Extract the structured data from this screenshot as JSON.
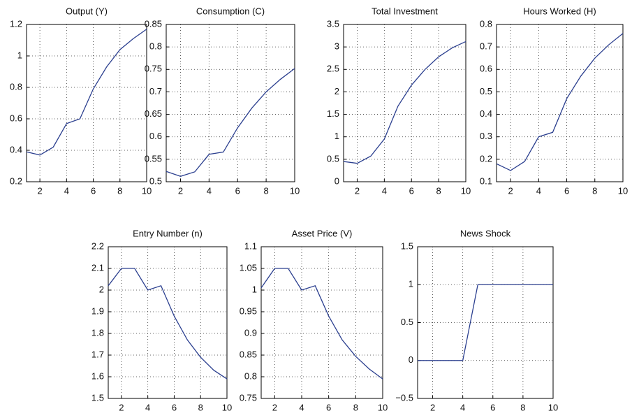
{
  "chart_data": [
    {
      "type": "line",
      "title": "Output (Y)",
      "x": [
        1,
        2,
        3,
        4,
        5,
        6,
        7,
        8,
        9,
        10
      ],
      "values": [
        0.39,
        0.37,
        0.42,
        0.57,
        0.6,
        0.79,
        0.93,
        1.04,
        1.11,
        1.17
      ],
      "color": "#2b3f8f",
      "xlim": [
        1,
        10
      ],
      "xticks": [
        2,
        4,
        6,
        8,
        10
      ],
      "ylim": [
        0.2,
        1.2
      ],
      "yticks": [
        0.2,
        0.4,
        0.6,
        0.8,
        1,
        1.2
      ],
      "grid": true
    },
    {
      "type": "line",
      "title": "Consumption (C)",
      "x": [
        1,
        2,
        3,
        4,
        5,
        6,
        7,
        8,
        9,
        10
      ],
      "values": [
        0.523,
        0.512,
        0.522,
        0.561,
        0.566,
        0.62,
        0.664,
        0.7,
        0.728,
        0.752
      ],
      "color": "#2b3f8f",
      "xlim": [
        1,
        10
      ],
      "xticks": [
        2,
        4,
        6,
        8,
        10
      ],
      "ylim": [
        0.5,
        0.85
      ],
      "yticks": [
        0.5,
        0.55,
        0.6,
        0.65,
        0.7,
        0.75,
        0.8,
        0.85
      ],
      "grid": true
    },
    {
      "type": "line",
      "title": "Total Investment",
      "x": [
        1,
        2,
        3,
        4,
        5,
        6,
        7,
        8,
        9,
        10
      ],
      "values": [
        0.45,
        0.41,
        0.57,
        0.95,
        1.68,
        2.15,
        2.5,
        2.78,
        2.98,
        3.12
      ],
      "color": "#2b3f8f",
      "xlim": [
        1,
        10
      ],
      "xticks": [
        2,
        4,
        6,
        8,
        10
      ],
      "ylim": [
        0,
        3.5
      ],
      "yticks": [
        0,
        0.5,
        1,
        1.5,
        2,
        2.5,
        3,
        3.5
      ],
      "grid": true
    },
    {
      "type": "line",
      "title": "Hours Worked (H)",
      "x": [
        1,
        2,
        3,
        4,
        5,
        6,
        7,
        8,
        9,
        10
      ],
      "values": [
        0.18,
        0.15,
        0.19,
        0.3,
        0.32,
        0.47,
        0.57,
        0.65,
        0.71,
        0.76
      ],
      "color": "#2b3f8f",
      "xlim": [
        1,
        10
      ],
      "xticks": [
        2,
        4,
        6,
        8,
        10
      ],
      "ylim": [
        0.1,
        0.8
      ],
      "yticks": [
        0.1,
        0.2,
        0.3,
        0.4,
        0.5,
        0.6,
        0.7,
        0.8
      ],
      "grid": true
    },
    {
      "type": "line",
      "title": "Entry Number (n)",
      "x": [
        1,
        2,
        3,
        4,
        5,
        6,
        7,
        8,
        9,
        10
      ],
      "values": [
        2.02,
        2.1,
        2.1,
        2.0,
        2.02,
        1.88,
        1.77,
        1.69,
        1.63,
        1.59
      ],
      "color": "#2b3f8f",
      "xlim": [
        1,
        10
      ],
      "xticks": [
        2,
        4,
        6,
        8,
        10
      ],
      "ylim": [
        1.5,
        2.2
      ],
      "yticks": [
        1.5,
        1.6,
        1.7,
        1.8,
        1.9,
        2,
        2.1,
        2.2
      ],
      "grid": true
    },
    {
      "type": "line",
      "title": "Asset Price (V)",
      "x": [
        1,
        2,
        3,
        4,
        5,
        6,
        7,
        8,
        9,
        10
      ],
      "values": [
        1.005,
        1.05,
        1.05,
        1.0,
        1.01,
        0.94,
        0.885,
        0.847,
        0.818,
        0.795
      ],
      "color": "#2b3f8f",
      "xlim": [
        1,
        10
      ],
      "xticks": [
        2,
        4,
        6,
        8,
        10
      ],
      "ylim": [
        0.75,
        1.1
      ],
      "yticks": [
        0.75,
        0.8,
        0.85,
        0.9,
        0.95,
        1,
        1.05,
        1.1
      ],
      "grid": true
    },
    {
      "type": "line",
      "title": "News Shock",
      "x": [
        1,
        2,
        3,
        4,
        5,
        6,
        7,
        8,
        9,
        10
      ],
      "values": [
        0,
        0,
        0,
        0,
        1,
        1,
        1,
        1,
        1,
        1
      ],
      "color": "#2b3f8f",
      "xlim": [
        1,
        10
      ],
      "xticks": [
        2,
        4,
        6,
        8,
        10
      ],
      "ylim": [
        -0.5,
        1.5
      ],
      "yticks": [
        {
          "value": -0.5,
          "label": "−0.5"
        },
        0,
        0.5,
        1,
        1.5
      ],
      "grid": true
    }
  ]
}
